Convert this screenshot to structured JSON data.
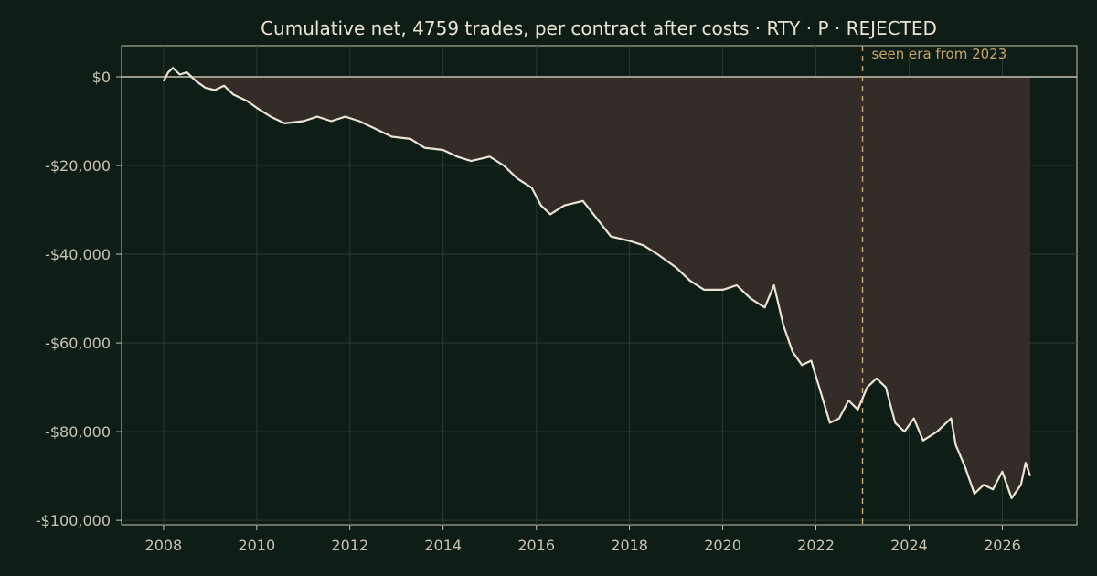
{
  "chart_data": {
    "type": "area",
    "title": "Cumulative net, 4759 trades, per contract after costs  ·  RTY · P · REJECTED",
    "xlabel": "",
    "ylabel": "",
    "xlim": [
      2007.1,
      2027.6
    ],
    "ylim": [
      -101000,
      7000
    ],
    "x_ticks": [
      2008,
      2010,
      2012,
      2014,
      2016,
      2018,
      2020,
      2022,
      2024,
      2026
    ],
    "x_tick_labels": [
      "2008",
      "2010",
      "2012",
      "2014",
      "2016",
      "2018",
      "2020",
      "2022",
      "2024",
      "2026"
    ],
    "y_ticks": [
      0,
      -20000,
      -40000,
      -60000,
      -80000,
      -100000
    ],
    "y_tick_labels": [
      "$0",
      "-$20,000",
      "-$40,000",
      "-$60,000",
      "-$80,000",
      "-$100,000"
    ],
    "grid": true,
    "zero_line": true,
    "annotation": {
      "x": 2023.0,
      "label": "seen era from 2023",
      "color": "#c9a36a"
    },
    "series": [
      {
        "x": [
          2008.0,
          2008.1,
          2008.2,
          2008.35,
          2008.5,
          2008.7,
          2008.9,
          2009.1,
          2009.3,
          2009.5,
          2009.8,
          2010.0,
          2010.3,
          2010.6,
          2011.0,
          2011.3,
          2011.6,
          2011.9,
          2012.2,
          2012.5,
          2012.9,
          2013.3,
          2013.6,
          2014.0,
          2014.3,
          2014.6,
          2015.0,
          2015.3,
          2015.6,
          2015.9,
          2016.1,
          2016.3,
          2016.6,
          2017.0,
          2017.3,
          2017.6,
          2018.0,
          2018.3,
          2018.6,
          2019.0,
          2019.3,
          2019.6,
          2020.0,
          2020.3,
          2020.6,
          2020.9,
          2021.1,
          2021.3,
          2021.5,
          2021.7,
          2021.9,
          2022.1,
          2022.3,
          2022.5,
          2022.7,
          2022.9,
          2023.1,
          2023.3,
          2023.5,
          2023.7,
          2023.9,
          2024.1,
          2024.3,
          2024.6,
          2024.9,
          2025.0,
          2025.2,
          2025.4,
          2025.6,
          2025.8,
          2026.0,
          2026.2,
          2026.4,
          2026.5,
          2026.6
        ],
        "y": [
          -1000,
          1000,
          2000,
          500,
          1000,
          -1000,
          -2500,
          -3000,
          -2000,
          -4000,
          -5500,
          -7000,
          -9000,
          -10500,
          -10000,
          -9000,
          -10000,
          -9000,
          -10000,
          -11500,
          -13500,
          -14000,
          -16000,
          -16500,
          -18000,
          -19000,
          -18000,
          -20000,
          -23000,
          -25000,
          -29000,
          -31000,
          -29000,
          -28000,
          -32000,
          -36000,
          -37000,
          -38000,
          -40000,
          -43000,
          -46000,
          -48000,
          -48000,
          -47000,
          -50000,
          -52000,
          -47000,
          -56000,
          -62000,
          -65000,
          -64000,
          -71000,
          -78000,
          -77000,
          -73000,
          -75000,
          -70000,
          -68000,
          -70000,
          -78000,
          -80000,
          -77000,
          -82000,
          -80000,
          -77000,
          -83000,
          -88000,
          -94000,
          -92000,
          -93000,
          -89000,
          -95000,
          -92000,
          -87000,
          -90000
        ]
      }
    ]
  }
}
